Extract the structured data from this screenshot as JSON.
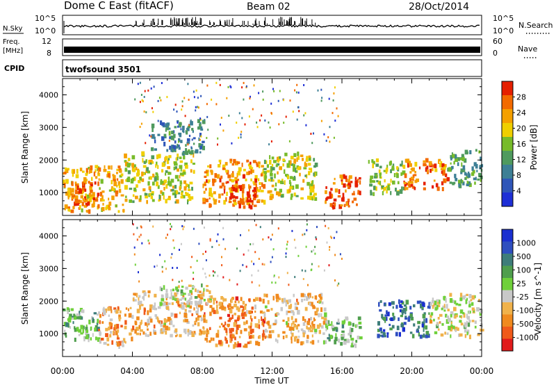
{
  "header": {
    "station": "Dome C East (fitACF)",
    "beam": "Beam 02",
    "date": "28/Oct/2014"
  },
  "panels": {
    "nsky": {
      "left_label": "N.Sky",
      "right_label": "N.Search",
      "left_ticks": [
        "10^5",
        "10^0"
      ],
      "right_ticks": [
        "10^5",
        "10^0"
      ]
    },
    "freq": {
      "label_line1": "Freq.",
      "label_line2": "[MHz]",
      "right_label": "Nave",
      "left_ticks": [
        "12",
        "8"
      ],
      "right_ticks": [
        "60",
        "0"
      ]
    },
    "cpid": {
      "label": "CPID",
      "program": "twofsound 3501"
    }
  },
  "colors": {
    "power_scale": [
      "#1e2fd6",
      "#2f56b8",
      "#3d7f95",
      "#4f9a5e",
      "#77bb2a",
      "#f0cf00",
      "#f5a000",
      "#f36a00",
      "#e51f00"
    ],
    "velocity_scale": [
      "#1a2fd0",
      "#2f4fbf",
      "#3e7d7a",
      "#4f9e4d",
      "#6fd03a",
      "#c8c8c8",
      "#f0b24b",
      "#f08a1e",
      "#f05a1a",
      "#e11b1b"
    ]
  },
  "chart_data": [
    {
      "type": "heatmap",
      "panel": "power",
      "ylabel": "Slant Range [km]",
      "xlabel": "Time UT",
      "xlim": [
        0,
        24
      ],
      "ylim": [
        300,
        4500
      ],
      "y_ticks": [
        1000,
        2000,
        3000,
        4000
      ],
      "x_ticks": [
        "00:00",
        "04:00",
        "08:00",
        "12:00",
        "16:00",
        "20:00",
        "00:00"
      ],
      "colorbar": {
        "label": "Power [dB]",
        "ticks": [
          "28",
          "24",
          "20",
          "16",
          "12",
          "8",
          "4"
        ],
        "range": [
          0,
          32
        ]
      },
      "regions": [
        {
          "t": [
            0.0,
            3.5
          ],
          "r": [
            400,
            1800
          ],
          "v": 22
        },
        {
          "t": [
            0.5,
            2.0
          ],
          "r": [
            600,
            1300
          ],
          "v": 28
        },
        {
          "t": [
            3.5,
            7.5
          ],
          "r": [
            700,
            2200
          ],
          "v": 18
        },
        {
          "t": [
            5.0,
            8.0
          ],
          "r": [
            2200,
            3200
          ],
          "v": 10
        },
        {
          "t": [
            8.0,
            11.5
          ],
          "r": [
            600,
            2000
          ],
          "v": 24
        },
        {
          "t": [
            9.5,
            11.0
          ],
          "r": [
            500,
            1200
          ],
          "v": 30
        },
        {
          "t": [
            11.5,
            14.5
          ],
          "r": [
            800,
            2200
          ],
          "v": 18
        },
        {
          "t": [
            15.0,
            17.0
          ],
          "r": [
            500,
            1500
          ],
          "v": 28
        },
        {
          "t": [
            17.5,
            19.5
          ],
          "r": [
            900,
            2000
          ],
          "v": 16
        },
        {
          "t": [
            19.5,
            22.0
          ],
          "r": [
            1100,
            2000
          ],
          "v": 26
        },
        {
          "t": [
            22.0,
            24.0
          ],
          "r": [
            1200,
            2300
          ],
          "v": 12
        }
      ]
    },
    {
      "type": "heatmap",
      "panel": "velocity",
      "ylabel": "Slant Range [km]",
      "xlabel": "Time UT",
      "xlim": [
        0,
        24
      ],
      "ylim": [
        300,
        4500
      ],
      "y_ticks": [
        1000,
        2000,
        3000,
        4000
      ],
      "x_ticks": [
        "00:00",
        "04:00",
        "08:00",
        "12:00",
        "16:00",
        "20:00",
        "00:00"
      ],
      "colorbar": {
        "label": "Velocity [m s^-1]",
        "ticks": [
          "1000",
          "500",
          "100",
          "25",
          "-25",
          "-100",
          "-500",
          "-1000"
        ],
        "range": [
          -1000,
          1000
        ]
      },
      "regions": [
        {
          "t": [
            0.0,
            2.0
          ],
          "r": [
            800,
            1800
          ],
          "v": 200
        },
        {
          "t": [
            2.0,
            4.0
          ],
          "r": [
            600,
            1800
          ],
          "v": -400
        },
        {
          "t": [
            4.0,
            8.0
          ],
          "r": [
            900,
            2300
          ],
          "v": -300
        },
        {
          "t": [
            5.5,
            8.5
          ],
          "r": [
            1900,
            2500
          ],
          "v": 0
        },
        {
          "t": [
            8.0,
            11.5
          ],
          "r": [
            600,
            2100
          ],
          "v": -500
        },
        {
          "t": [
            11.5,
            15.0
          ],
          "r": [
            700,
            2200
          ],
          "v": -300
        },
        {
          "t": [
            15.0,
            17.0
          ],
          "r": [
            600,
            1500
          ],
          "v": 150
        },
        {
          "t": [
            18.0,
            21.0
          ],
          "r": [
            900,
            2000
          ],
          "v": 600
        },
        {
          "t": [
            21.0,
            24.0
          ],
          "r": [
            900,
            2200
          ],
          "v": -100
        }
      ]
    }
  ],
  "axis": {
    "time_label": "Time UT"
  }
}
